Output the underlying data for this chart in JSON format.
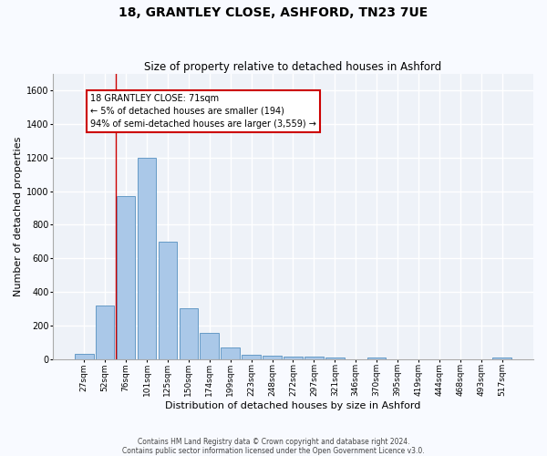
{
  "title": "18, GRANTLEY CLOSE, ASHFORD, TN23 7UE",
  "subtitle": "Size of property relative to detached houses in Ashford",
  "xlabel": "Distribution of detached houses by size in Ashford",
  "ylabel": "Number of detached properties",
  "bar_color": "#aac8e8",
  "bar_edge_color": "#5590c0",
  "categories": [
    "27sqm",
    "52sqm",
    "76sqm",
    "101sqm",
    "125sqm",
    "150sqm",
    "174sqm",
    "199sqm",
    "223sqm",
    "248sqm",
    "272sqm",
    "297sqm",
    "321sqm",
    "346sqm",
    "370sqm",
    "395sqm",
    "419sqm",
    "444sqm",
    "468sqm",
    "493sqm",
    "517sqm"
  ],
  "values": [
    30,
    320,
    970,
    1200,
    700,
    305,
    155,
    70,
    28,
    20,
    15,
    15,
    10,
    0,
    12,
    0,
    0,
    0,
    0,
    0,
    12
  ],
  "ylim": [
    0,
    1700
  ],
  "yticks": [
    0,
    200,
    400,
    600,
    800,
    1000,
    1200,
    1400,
    1600
  ],
  "annotation_line1": "18 GRANTLEY CLOSE: 71sqm",
  "annotation_line2": "← 5% of detached houses are smaller (194)",
  "annotation_line3": "94% of semi-detached houses are larger (3,559) →",
  "annotation_box_facecolor": "#ffffff",
  "annotation_box_edgecolor": "#cc0000",
  "vline_position": 1.5,
  "vline_color": "#cc0000",
  "bg_color": "#eef2f8",
  "grid_color": "#ffffff",
  "footer": "Contains HM Land Registry data © Crown copyright and database right 2024.\nContains public sector information licensed under the Open Government Licence v3.0.",
  "title_fontsize": 10,
  "subtitle_fontsize": 8.5,
  "xlabel_fontsize": 8,
  "ylabel_fontsize": 8,
  "annotation_fontsize": 7,
  "tick_fontsize": 6.5,
  "ytick_fontsize": 7,
  "footer_fontsize": 5.5
}
